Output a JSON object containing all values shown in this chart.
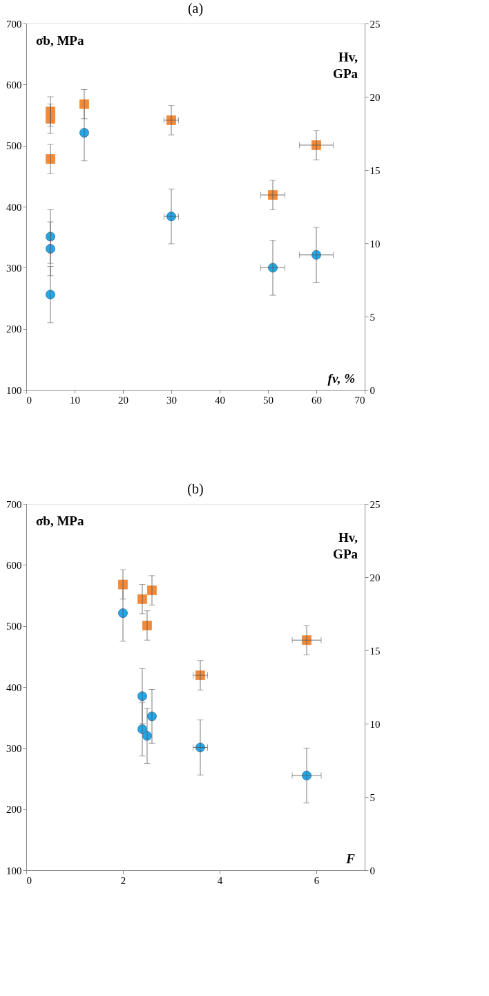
{
  "chart_data": [
    {
      "type": "scatter",
      "title": "(a)",
      "xlabel": "fv, %",
      "ylabel": "σb, MPa",
      "y2label": "Hv, GPa",
      "xlim": [
        0,
        70
      ],
      "xticks": [
        0,
        10,
        20,
        30,
        40,
        50,
        60,
        70
      ],
      "ylim": [
        100,
        700
      ],
      "yticks": [
        100,
        200,
        300,
        400,
        500,
        600,
        700
      ],
      "y2lim": [
        0,
        25
      ],
      "y2ticks": [
        0,
        5,
        10,
        15,
        20,
        25
      ],
      "grid": false,
      "series": [
        {
          "color": "#22a8e8",
          "marker": "circle",
          "x": [
            5,
            5,
            5,
            12,
            30,
            51,
            60
          ],
          "values": [
            351,
            331,
            256,
            521,
            384,
            300,
            321
          ],
          "errors": [
            44,
            44,
            46,
            46,
            45,
            45,
            45
          ],
          "xerrors": [
            null,
            null,
            null,
            null,
            1.5,
            2.5,
            3.5
          ]
        },
        {
          "axis": "y2",
          "color": "#f28a3a",
          "marker": "square",
          "x": [
            5,
            5,
            5,
            12,
            30,
            51,
            60
          ],
          "values": [
            19.0,
            18.5,
            15.75,
            19.5,
            18.4,
            13.3,
            16.7
          ],
          "errors": [
            1,
            1,
            1,
            1,
            1,
            1,
            1
          ],
          "xerrors": [
            null,
            null,
            null,
            null,
            1.5,
            2.5,
            3.5
          ]
        }
      ]
    },
    {
      "type": "scatter",
      "title": "(b)",
      "xlabel": "F",
      "ylabel": "σb, MPa",
      "y2label": "Hv, GPa",
      "xlim": [
        0,
        7
      ],
      "xticks": [
        0,
        2,
        4,
        6
      ],
      "ylim": [
        100,
        700
      ],
      "yticks": [
        100,
        200,
        300,
        400,
        500,
        600,
        700
      ],
      "y2lim": [
        0,
        25
      ],
      "y2ticks": [
        0,
        5,
        10,
        15,
        20,
        25
      ],
      "grid": false,
      "series": [
        {
          "color": "#22a8e8",
          "marker": "circle",
          "x": [
            2,
            2.4,
            2.4,
            2.5,
            2.6,
            3.6,
            5.8
          ],
          "values": [
            521,
            385,
            331,
            320,
            352,
            301,
            255
          ],
          "errors": [
            46,
            45,
            44,
            45,
            44,
            45,
            45
          ],
          "xerrors": [
            null,
            null,
            null,
            null,
            null,
            0.15,
            0.3
          ]
        },
        {
          "axis": "y2",
          "color": "#f28a3a",
          "marker": "square",
          "x": [
            2,
            2.4,
            2.6,
            2.5,
            3.6,
            5.8
          ],
          "values": [
            19.5,
            18.5,
            19.1,
            16.7,
            13.3,
            15.7
          ],
          "errors": [
            1,
            1,
            1,
            1,
            1,
            1
          ],
          "xerrors": [
            null,
            null,
            null,
            null,
            0.15,
            0.3
          ]
        }
      ]
    }
  ]
}
